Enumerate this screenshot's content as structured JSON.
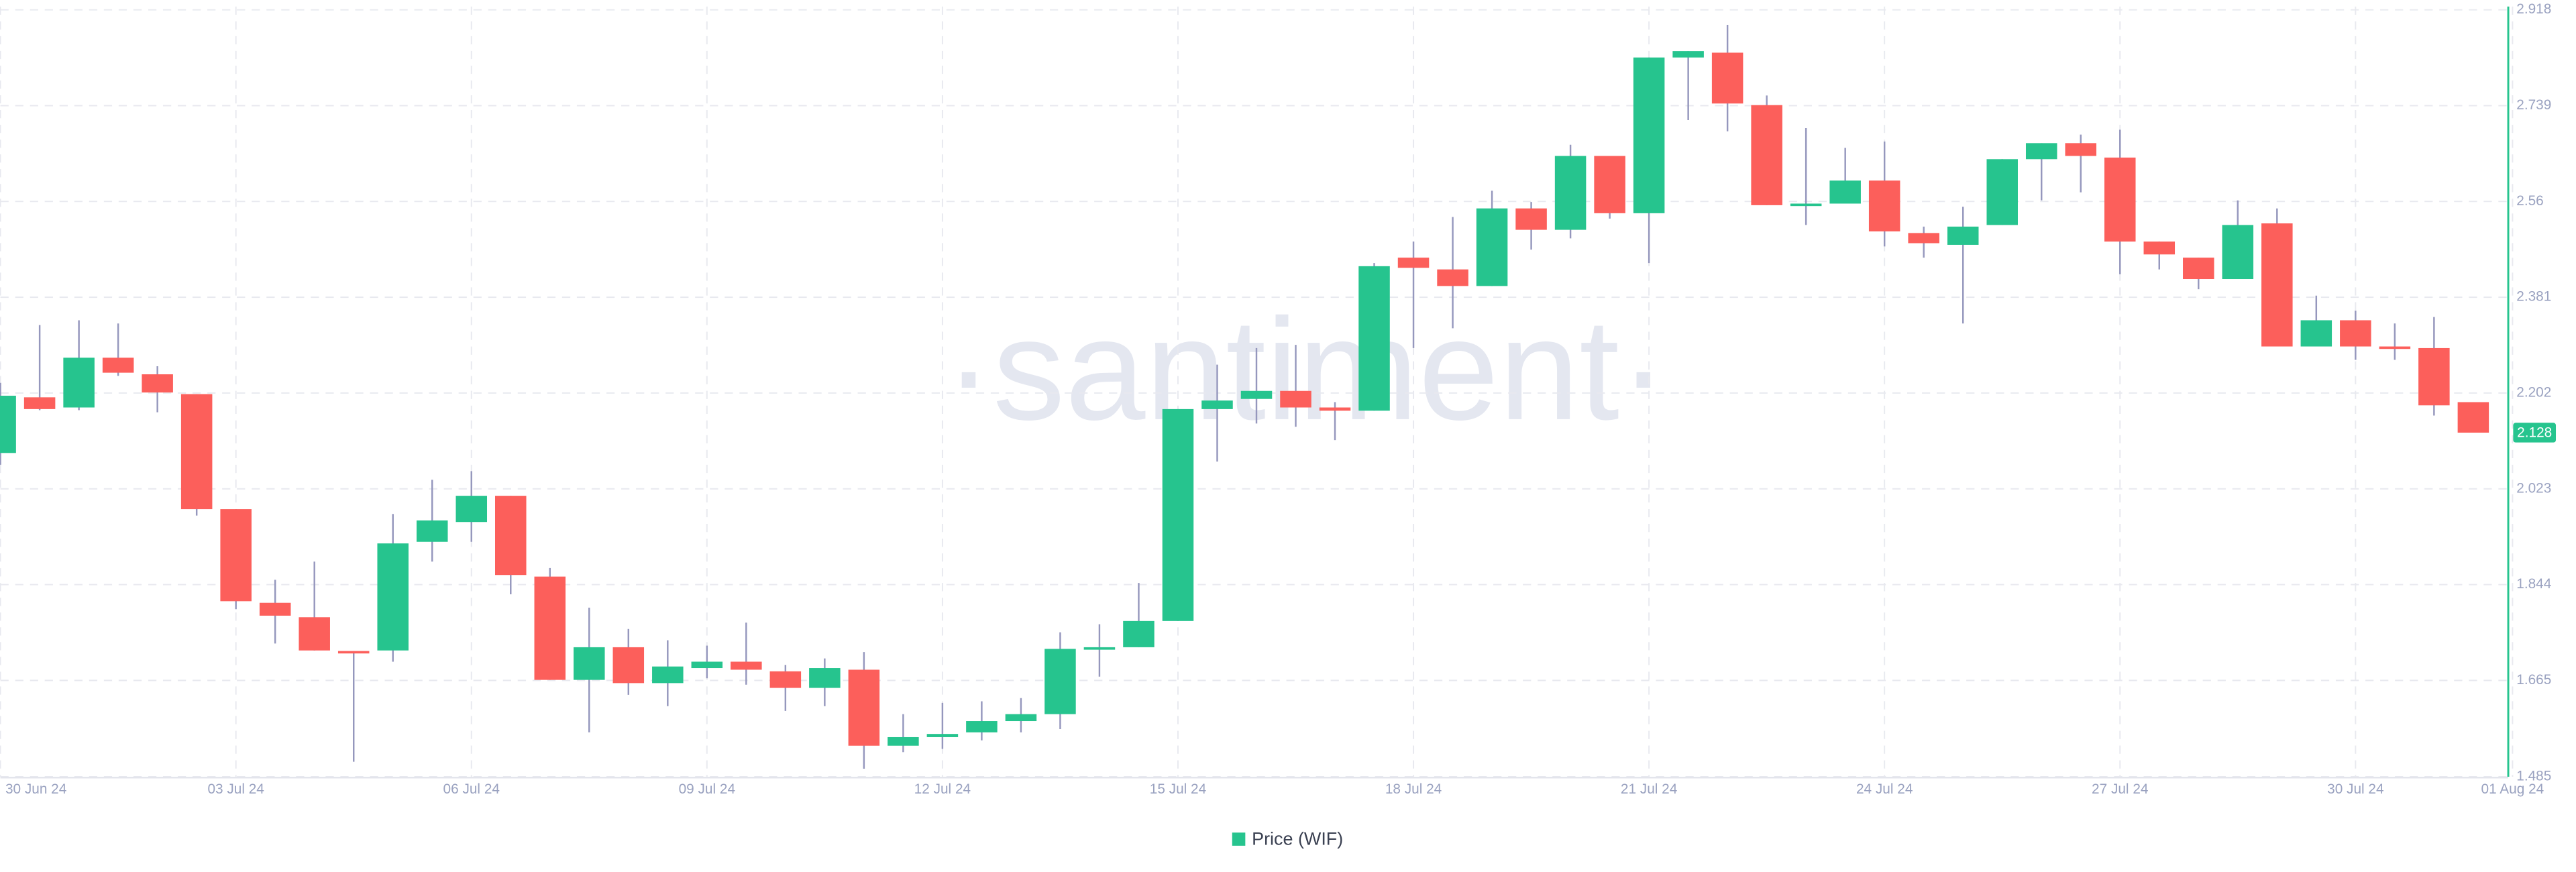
{
  "chart_data": {
    "type": "candlestick",
    "watermark": "·santiment·",
    "categories": [
      "30 Jun 24",
      null,
      null,
      null,
      null,
      null,
      "03 Jul 24",
      null,
      null,
      null,
      null,
      null,
      "06 Jul 24",
      null,
      null,
      null,
      null,
      null,
      "09 Jul 24",
      null,
      null,
      null,
      null,
      null,
      "12 Jul 24",
      null,
      null,
      null,
      null,
      null,
      "15 Jul 24",
      null,
      null,
      null,
      null,
      null,
      "18 Jul 24",
      null,
      null,
      null,
      null,
      null,
      "21 Jul 24",
      null,
      null,
      null,
      null,
      null,
      "24 Jul 24",
      null,
      null,
      null,
      null,
      null,
      "27 Jul 24",
      null,
      null,
      null,
      null,
      null,
      "30 Jul 24",
      null,
      null,
      null,
      "01 Aug 24"
    ],
    "series": [
      {
        "name": "Price (WIF)",
        "color": "#26c48e",
        "down_color": "#fc5f5b",
        "wick_color": "#9597bd",
        "open": [
          2.09,
          2.194,
          2.175,
          2.268,
          2.237,
          2.2,
          1.985,
          1.81,
          1.783,
          1.72,
          1.721,
          1.924,
          1.961,
          2.01,
          1.859,
          1.666,
          1.727,
          1.66,
          1.688,
          1.7,
          1.682,
          1.651,
          1.685,
          1.543,
          1.559,
          1.568,
          1.589,
          1.602,
          1.724,
          1.727,
          1.776,
          2.172,
          2.191,
          2.206,
          2.175,
          2.169,
          2.455,
          2.433,
          2.402,
          2.547,
          2.507,
          2.645,
          2.538,
          2.829,
          2.838,
          2.74,
          2.553,
          2.556,
          2.599,
          2.501,
          2.479,
          2.516,
          2.639,
          2.669,
          2.642,
          2.485,
          2.455,
          2.415,
          2.519,
          2.289,
          2.338,
          2.289,
          2.286,
          2.185,
          null
        ],
        "high": [
          2.221,
          2.329,
          2.338,
          2.332,
          2.252,
          2.2,
          1.985,
          1.853,
          1.887,
          1.72,
          1.976,
          2.04,
          2.056,
          2.01,
          1.875,
          1.801,
          1.761,
          1.74,
          1.73,
          1.773,
          1.694,
          1.706,
          1.718,
          1.602,
          1.623,
          1.626,
          1.632,
          1.755,
          1.77,
          1.847,
          2.172,
          2.255,
          2.286,
          2.292,
          2.185,
          2.445,
          2.485,
          2.531,
          2.58,
          2.559,
          2.666,
          2.645,
          2.829,
          2.841,
          2.89,
          2.758,
          2.697,
          2.66,
          2.672,
          2.513,
          2.55,
          2.639,
          2.669,
          2.685,
          2.694,
          2.485,
          2.455,
          2.562,
          2.547,
          2.384,
          2.356,
          2.332,
          2.344,
          2.185,
          null
        ],
        "low": [
          2.068,
          2.17,
          2.17,
          2.234,
          2.166,
          1.973,
          1.798,
          1.734,
          1.721,
          1.513,
          1.7,
          1.887,
          1.924,
          1.826,
          1.666,
          1.568,
          1.638,
          1.617,
          1.669,
          1.657,
          1.608,
          1.617,
          1.5,
          1.531,
          1.537,
          1.553,
          1.568,
          1.574,
          1.672,
          1.727,
          1.776,
          2.074,
          2.145,
          2.139,
          2.114,
          2.169,
          2.286,
          2.323,
          2.402,
          2.47,
          2.491,
          2.528,
          2.445,
          2.712,
          2.691,
          2.553,
          2.516,
          2.556,
          2.476,
          2.455,
          2.332,
          2.516,
          2.562,
          2.577,
          2.424,
          2.433,
          2.396,
          2.415,
          2.289,
          2.289,
          2.264,
          2.264,
          2.16,
          2.128,
          null
        ],
        "close": [
          2.197,
          2.172,
          2.268,
          2.24,
          2.203,
          1.985,
          1.813,
          1.786,
          1.721,
          1.718,
          1.921,
          1.964,
          2.01,
          1.862,
          1.666,
          1.727,
          1.66,
          1.691,
          1.7,
          1.685,
          1.651,
          1.688,
          1.543,
          1.559,
          1.565,
          1.589,
          1.602,
          1.724,
          1.727,
          1.776,
          2.172,
          2.188,
          2.206,
          2.175,
          2.169,
          2.439,
          2.436,
          2.402,
          2.547,
          2.507,
          2.645,
          2.538,
          2.829,
          2.841,
          2.743,
          2.553,
          2.556,
          2.599,
          2.504,
          2.482,
          2.513,
          2.639,
          2.669,
          2.645,
          2.485,
          2.461,
          2.415,
          2.516,
          2.289,
          2.338,
          2.289,
          2.286,
          2.179,
          2.128,
          null
        ]
      }
    ],
    "ylim": [
      1.485,
      2.918
    ],
    "yticks": [
      1.485,
      1.665,
      1.844,
      2.023,
      2.202,
      2.381,
      2.56,
      2.739,
      2.918
    ],
    "grid": true
  }
}
